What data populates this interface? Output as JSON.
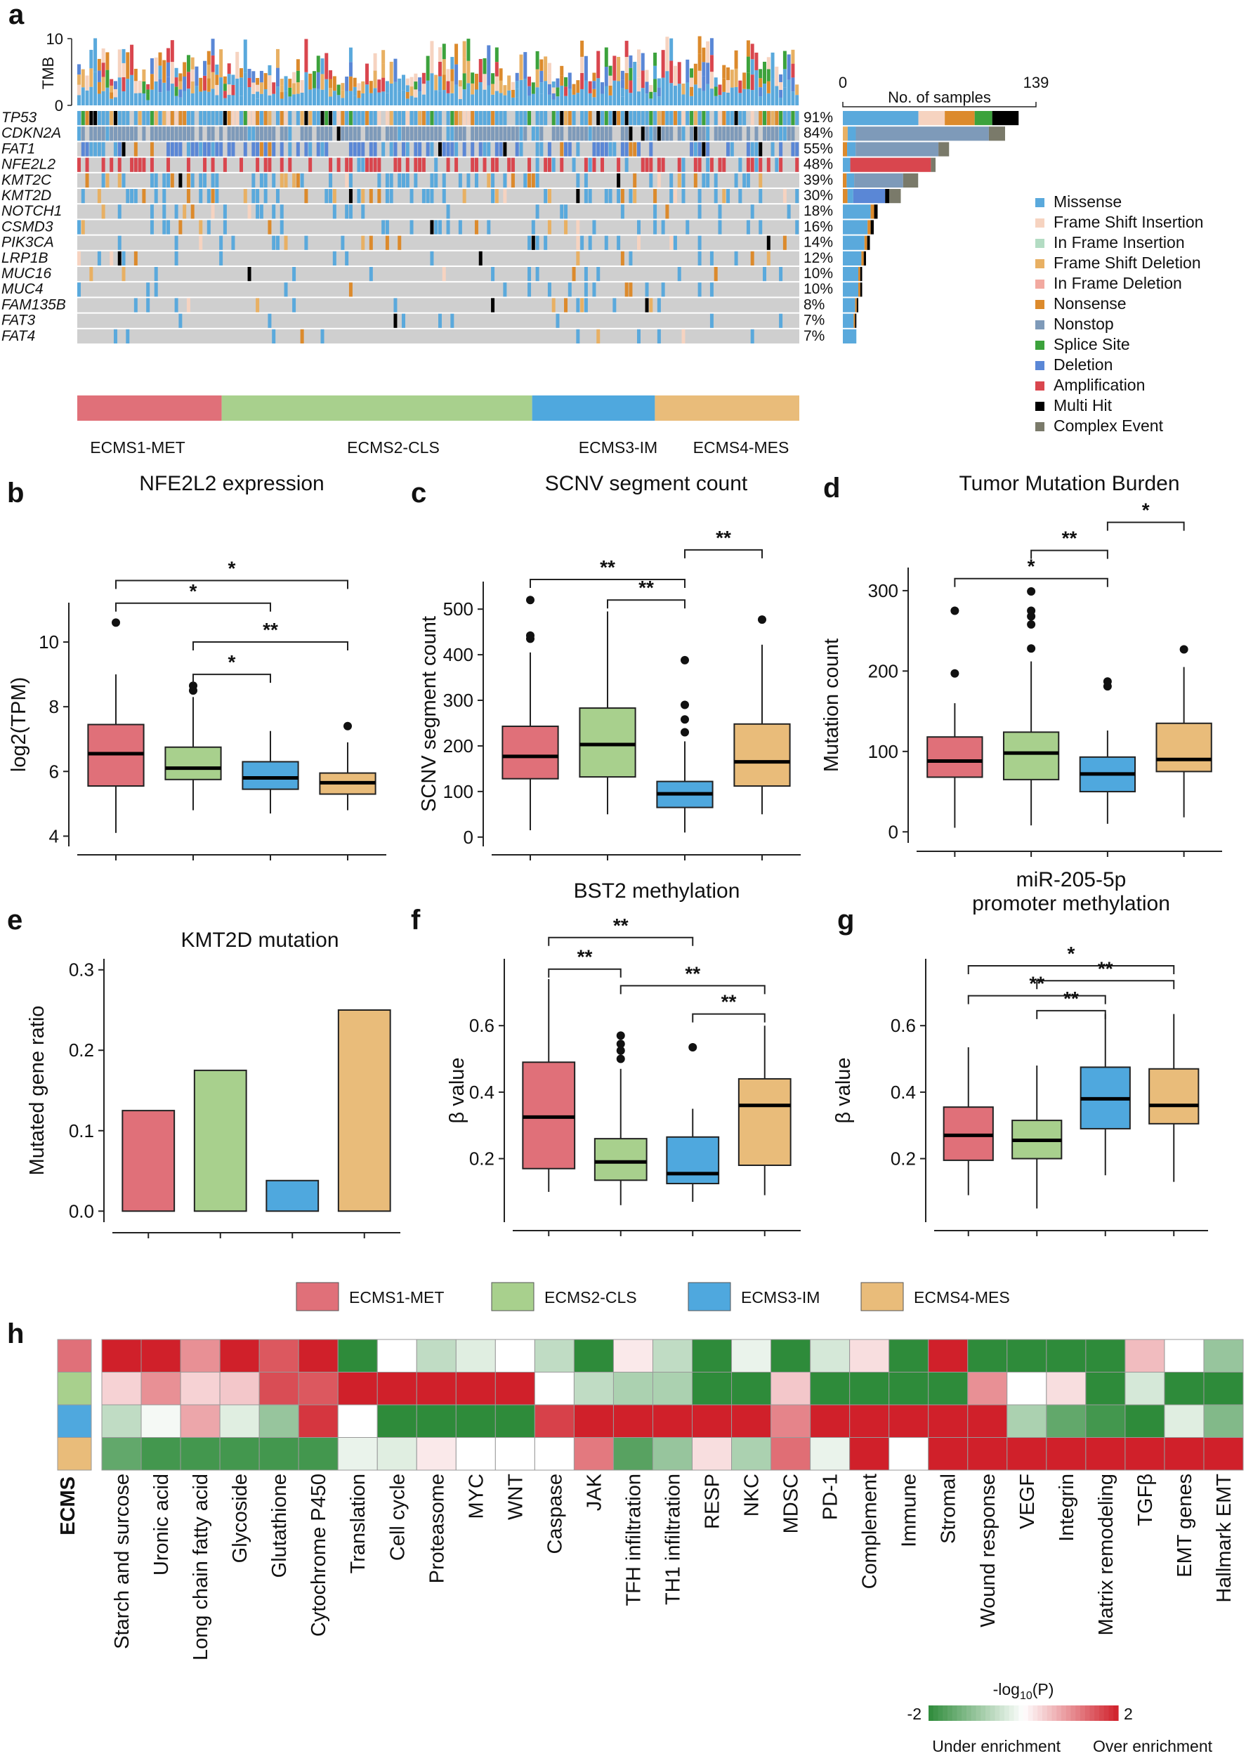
{
  "panels": {
    "a": "a",
    "b": "b",
    "c": "c",
    "d": "d",
    "e": "e",
    "f": "f",
    "g": "g",
    "h": "h"
  },
  "colors": {
    "ECMS1-MET": "#e07079",
    "ECMS2-CLS": "#a8d08d",
    "ECMS3-IM": "#4fa8de",
    "ECMS4-MES": "#e9bc7a",
    "Missense": "#5aa9dc",
    "Frame Shift Insertion": "#f6d3c0",
    "In Frame Insertion": "#b3dcc3",
    "Frame Shift Deletion": "#e8b063",
    "In Frame Deletion": "#f2a9a0",
    "Nonsense": "#dc8a2c",
    "Nonstop": "#7e9ab9",
    "Splice Site": "#3ca23c",
    "Deletion": "#5a87d6",
    "Amplification": "#d9464e",
    "Multi Hit": "#000000",
    "Complex Event": "#7a7a6a",
    "wildtype": "#cfcfcf",
    "heat_low": "#2e8b3a",
    "heat_mid": "#ffffff",
    "heat_high": "#d0202a"
  },
  "chart_data": [
    {
      "panel": "a",
      "type": "oncoplot",
      "top_axis_label": "TMB",
      "top_axis_ticks": [
        "0",
        "10"
      ],
      "right_axis_label": "No. of samples",
      "right_axis_ticks": [
        "0",
        "139"
      ],
      "genes": [
        {
          "name": "TP53",
          "pct": "91%",
          "frac": 0.91
        },
        {
          "name": "CDKN2A",
          "pct": "84%",
          "frac": 0.84
        },
        {
          "name": "FAT1",
          "pct": "55%",
          "frac": 0.55
        },
        {
          "name": "NFE2L2",
          "pct": "48%",
          "frac": 0.48
        },
        {
          "name": "KMT2C",
          "pct": "39%",
          "frac": 0.39
        },
        {
          "name": "KMT2D",
          "pct": "30%",
          "frac": 0.3
        },
        {
          "name": "NOTCH1",
          "pct": "18%",
          "frac": 0.18
        },
        {
          "name": "CSMD3",
          "pct": "16%",
          "frac": 0.16
        },
        {
          "name": "PIK3CA",
          "pct": "14%",
          "frac": 0.14
        },
        {
          "name": "LRP1B",
          "pct": "12%",
          "frac": 0.12
        },
        {
          "name": "MUC16",
          "pct": "10%",
          "frac": 0.1
        },
        {
          "name": "MUC4",
          "pct": "10%",
          "frac": 0.1
        },
        {
          "name": "FAM135B",
          "pct": "8%",
          "frac": 0.08
        },
        {
          "name": "FAT3",
          "pct": "7%",
          "frac": 0.07
        },
        {
          "name": "FAT4",
          "pct": "7%",
          "frac": 0.07
        }
      ],
      "legend": [
        "Missense",
        "Frame Shift Insertion",
        "In Frame Insertion",
        "Frame Shift Deletion",
        "In Frame Deletion",
        "Nonsense",
        "Nonstop",
        "Splice Site",
        "Deletion",
        "Amplification",
        "Multi Hit",
        "Complex Event"
      ],
      "subtypes": [
        {
          "name": "ECMS1-MET",
          "frac": 0.2
        },
        {
          "name": "ECMS2-CLS",
          "frac": 0.43
        },
        {
          "name": "ECMS3-IM",
          "frac": 0.17
        },
        {
          "name": "ECMS4-MES",
          "frac": 0.2
        }
      ]
    },
    {
      "panel": "b",
      "type": "box",
      "title": "NFE2L2 expression",
      "ylabel": "log2(TPM)",
      "ylim": [
        3.9,
        11
      ],
      "yticks": [
        4,
        6,
        8,
        10
      ],
      "yticklabels": [
        "4",
        "6",
        "8",
        "10"
      ],
      "boxes": [
        {
          "group": "ECMS1-MET",
          "min": 4.1,
          "q1": 5.55,
          "median": 6.55,
          "q3": 7.45,
          "max": 9.0,
          "outliers": [
            10.6
          ]
        },
        {
          "group": "ECMS2-CLS",
          "min": 4.8,
          "q1": 5.75,
          "median": 6.1,
          "q3": 6.75,
          "max": 8.3,
          "outliers": [
            8.5,
            8.65
          ]
        },
        {
          "group": "ECMS3-IM",
          "min": 4.7,
          "q1": 5.45,
          "median": 5.8,
          "q3": 6.3,
          "max": 7.25,
          "outliers": []
        },
        {
          "group": "ECMS4-MES",
          "min": 4.8,
          "q1": 5.3,
          "median": 5.65,
          "q3": 5.95,
          "max": 6.9,
          "outliers": [
            7.4
          ]
        }
      ],
      "brackets": [
        {
          "a": 0,
          "b": 3,
          "label": "*",
          "y": 11.9
        },
        {
          "a": 0,
          "b": 2,
          "label": "*",
          "y": 11.2
        },
        {
          "a": 1,
          "b": 3,
          "label": "**",
          "y": 10.0
        },
        {
          "a": 1,
          "b": 2,
          "label": "*",
          "y": 9.0
        }
      ]
    },
    {
      "panel": "c",
      "type": "box",
      "title": "SCNV segment count",
      "ylabel": "SCNV segment count",
      "ylim": [
        -5,
        545
      ],
      "yticks": [
        0,
        100,
        200,
        300,
        400,
        500
      ],
      "yticklabels": [
        "0",
        "100",
        "200",
        "300",
        "400",
        "500"
      ],
      "boxes": [
        {
          "group": "ECMS1-MET",
          "min": 15,
          "q1": 128,
          "median": 177,
          "q3": 243,
          "max": 405,
          "outliers": [
            435,
            442,
            520
          ]
        },
        {
          "group": "ECMS2-CLS",
          "min": 50,
          "q1": 132,
          "median": 203,
          "q3": 283,
          "max": 495,
          "outliers": []
        },
        {
          "group": "ECMS3-IM",
          "min": 10,
          "q1": 65,
          "median": 95,
          "q3": 122,
          "max": 210,
          "outliers": [
            230,
            258,
            290,
            388
          ]
        },
        {
          "group": "ECMS4-MES",
          "min": 50,
          "q1": 112,
          "median": 165,
          "q3": 248,
          "max": 422,
          "outliers": [
            477
          ]
        }
      ],
      "brackets": [
        {
          "a": 2,
          "b": 3,
          "label": "**",
          "y": 630
        },
        {
          "a": 0,
          "b": 2,
          "label": "**",
          "y": 565
        },
        {
          "a": 1,
          "b": 2,
          "label": "**",
          "y": 520
        }
      ]
    },
    {
      "panel": "d",
      "type": "box",
      "title": "Tumor Mutation Burden",
      "ylabel": "Mutation count",
      "ylim": [
        -5,
        320
      ],
      "yticks": [
        0,
        100,
        200,
        300
      ],
      "yticklabels": [
        "0",
        "100",
        "200",
        "300"
      ],
      "boxes": [
        {
          "group": "ECMS1-MET",
          "min": 5,
          "q1": 68,
          "median": 88,
          "q3": 118,
          "max": 160,
          "outliers": [
            197,
            275
          ]
        },
        {
          "group": "ECMS2-CLS",
          "min": 8,
          "q1": 65,
          "median": 98,
          "q3": 124,
          "max": 212,
          "outliers": [
            228,
            258,
            268,
            275,
            299
          ]
        },
        {
          "group": "ECMS3-IM",
          "min": 10,
          "q1": 50,
          "median": 72,
          "q3": 93,
          "max": 126,
          "outliers": [
            181,
            187
          ]
        },
        {
          "group": "ECMS4-MES",
          "min": 18,
          "q1": 75,
          "median": 90,
          "q3": 135,
          "max": 205,
          "outliers": [
            227
          ]
        }
      ],
      "brackets": [
        {
          "a": 2,
          "b": 3,
          "label": "*",
          "y": 385
        },
        {
          "a": 1,
          "b": 2,
          "label": "**",
          "y": 350
        },
        {
          "a": 0,
          "b": 2,
          "label": "*",
          "y": 315
        }
      ]
    },
    {
      "panel": "e",
      "type": "bar",
      "title": "KMT2D mutation",
      "ylabel": "Mutated gene ratio",
      "ylim": [
        -0.005,
        0.305
      ],
      "yticks": [
        0,
        0.1,
        0.2,
        0.3
      ],
      "yticklabels": [
        "0.0",
        "0.1",
        "0.2",
        "0.3"
      ],
      "categories": [
        "ECMS1-MET",
        "ECMS2-CLS",
        "ECMS3-IM",
        "ECMS4-MES"
      ],
      "values": [
        0.125,
        0.175,
        0.038,
        0.25
      ]
    },
    {
      "panel": "f",
      "type": "box",
      "title": "BST2 methylation",
      "ylabel": "β value",
      "ylim": [
        0.03,
        0.78
      ],
      "yticks": [
        0.2,
        0.4,
        0.6
      ],
      "yticklabels": [
        "0.2",
        "0.4",
        "0.6"
      ],
      "boxes": [
        {
          "group": "ECMS1-MET",
          "min": 0.1,
          "q1": 0.17,
          "median": 0.325,
          "q3": 0.49,
          "max": 0.74,
          "outliers": []
        },
        {
          "group": "ECMS2-CLS",
          "min": 0.06,
          "q1": 0.135,
          "median": 0.19,
          "q3": 0.26,
          "max": 0.47,
          "outliers": [
            0.5,
            0.525,
            0.545,
            0.57
          ]
        },
        {
          "group": "ECMS3-IM",
          "min": 0.07,
          "q1": 0.125,
          "median": 0.155,
          "q3": 0.265,
          "max": 0.35,
          "outliers": [
            0.535
          ]
        },
        {
          "group": "ECMS4-MES",
          "min": 0.09,
          "q1": 0.18,
          "median": 0.36,
          "q3": 0.44,
          "max": 0.6,
          "outliers": []
        }
      ],
      "brackets": [
        {
          "a": 0,
          "b": 2,
          "label": "**",
          "y": 0.865
        },
        {
          "a": 0,
          "b": 1,
          "label": "**",
          "y": 0.77
        },
        {
          "a": 1,
          "b": 3,
          "label": "**",
          "y": 0.72
        },
        {
          "a": 2,
          "b": 3,
          "label": "**",
          "y": 0.635
        }
      ]
    },
    {
      "panel": "g",
      "type": "box",
      "title": "miR-205-5p",
      "subtitle": "promoter methylation",
      "ylabel": "β value",
      "ylim": [
        0.03,
        0.78
      ],
      "yticks": [
        0.2,
        0.4,
        0.6
      ],
      "yticklabels": [
        "0.2",
        "0.4",
        "0.6"
      ],
      "boxes": [
        {
          "group": "ECMS1-MET",
          "min": 0.09,
          "q1": 0.195,
          "median": 0.27,
          "q3": 0.355,
          "max": 0.535,
          "outliers": []
        },
        {
          "group": "ECMS2-CLS",
          "min": 0.05,
          "q1": 0.2,
          "median": 0.255,
          "q3": 0.315,
          "max": 0.48,
          "outliers": []
        },
        {
          "group": "ECMS3-IM",
          "min": 0.15,
          "q1": 0.29,
          "median": 0.38,
          "q3": 0.475,
          "max": 0.635,
          "outliers": []
        },
        {
          "group": "ECMS4-MES",
          "min": 0.13,
          "q1": 0.305,
          "median": 0.36,
          "q3": 0.47,
          "max": 0.635,
          "outliers": []
        }
      ],
      "brackets": [
        {
          "a": 0,
          "b": 3,
          "label": "*",
          "y": 0.78
        },
        {
          "a": 1,
          "b": 3,
          "label": "**",
          "y": 0.735
        },
        {
          "a": 0,
          "b": 2,
          "label": "**",
          "y": 0.69
        },
        {
          "a": 1,
          "b": 2,
          "label": "**",
          "y": 0.645
        }
      ]
    },
    {
      "panel": "h",
      "type": "heatmap",
      "row_label": "ECMS",
      "rows": [
        "ECMS1-MET",
        "ECMS2-CLS",
        "ECMS3-IM",
        "ECMS4-MES"
      ],
      "columns": [
        "Starch and surcose",
        "Uronic acid",
        "Long chain fatty acid",
        "Glycoside",
        "Glutathione",
        "Cytochrome P450",
        "Translation",
        "Cell cycle",
        "Proteasome",
        "MYC",
        "WNT",
        "Caspase",
        "JAK",
        "TFH infiltration",
        "TH1 infiltration",
        "RESP",
        "NKC",
        "MDSC",
        "PD-1",
        "Complement",
        "Immune",
        "Stromal",
        "Wound response",
        "VEGF",
        "Integrin",
        "Matrix remodeling",
        "TGFβ",
        "EMT genes",
        "Hallmark EMT"
      ],
      "values": [
        [
          2,
          2,
          1,
          2,
          1.5,
          2,
          -2,
          0,
          -0.6,
          -0.3,
          0,
          -0.6,
          -2,
          0.2,
          -0.6,
          -2,
          -0.2,
          -2,
          -0.4,
          0.3,
          -2,
          2,
          -2,
          -2,
          -2,
          -2,
          0.6,
          0,
          -1
        ],
        [
          0.4,
          1,
          0.4,
          0.5,
          1.6,
          1.5,
          2,
          2,
          2,
          2,
          2,
          0,
          -0.6,
          -0.8,
          -0.8,
          -2,
          -2,
          0.5,
          -2,
          -2,
          -2,
          -2,
          1,
          0,
          0.3,
          -2,
          -0.4,
          -2,
          -2
        ],
        [
          -0.6,
          -0.1,
          0.8,
          -0.3,
          -1,
          1.8,
          0,
          -2,
          -2,
          -2,
          -2,
          1.7,
          2,
          2,
          2,
          2,
          2,
          1.1,
          2,
          2,
          2,
          2,
          2,
          -0.8,
          -1.5,
          -1.8,
          -2,
          -0.3,
          -1.2
        ],
        [
          -1.5,
          -1.8,
          -1.8,
          -1.8,
          -1.8,
          -1.8,
          -0.2,
          -0.3,
          0.2,
          0,
          0,
          0,
          1.2,
          -1.6,
          -1,
          0.3,
          -0.8,
          1.3,
          -0.2,
          2,
          0,
          2,
          2,
          2,
          2,
          2,
          2,
          2,
          2
        ]
      ],
      "colorbar": {
        "label_main": "-log",
        "label_sub": "10",
        "label_tail": "(P)",
        "min_label": "-2",
        "max_label": "2",
        "low_text": "Under enrichment",
        "high_text": "Over enrichment"
      }
    }
  ],
  "group_legend": [
    "ECMS1-MET",
    "ECMS2-CLS",
    "ECMS3-IM",
    "ECMS4-MES"
  ]
}
